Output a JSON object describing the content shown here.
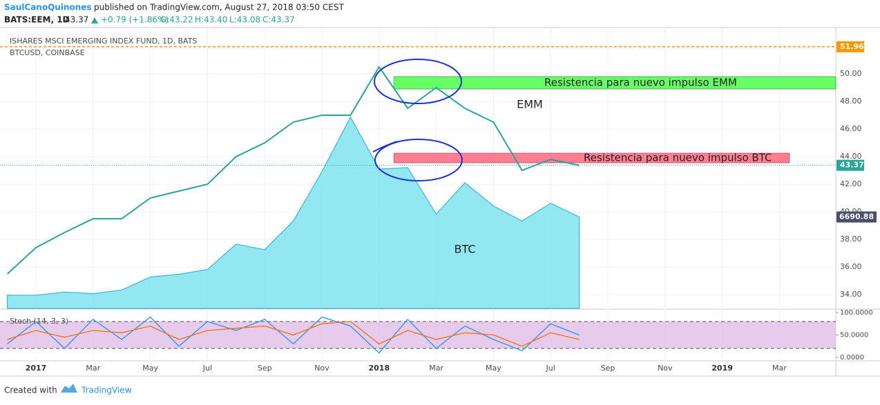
{
  "header": {
    "author": "SaulCanoQuinones",
    "published": "published on TradingView.com, August 27, 2018 03:50 CEST",
    "symbol": "BATS:EEM, 1D",
    "last": "43.37",
    "change": "+0.79 (+1.86%)",
    "open": "O:43.22",
    "high": "H:43.40",
    "low": "L:43.08",
    "close": "C:43.37"
  },
  "footer": {
    "created": "Created with",
    "brand": "TradingView"
  },
  "chart_data": [
    {
      "type": "line",
      "x": [
        "2016-12",
        "2017-01",
        "2017-02",
        "2017-03",
        "2017-04",
        "2017-05",
        "2017-06",
        "2017-07",
        "2017-08",
        "2017-09",
        "2017-10",
        "2017-11",
        "2017-12",
        "2018-01",
        "2018-02",
        "2018-03",
        "2018-04",
        "2018-05",
        "2018-06",
        "2018-07",
        "2018-08"
      ],
      "series": [
        {
          "name": "ISHARES MSCI EMERGING INDEX FUND, 1D, BATS",
          "color": "#26a69a",
          "values": [
            35.5,
            37.4,
            38.5,
            39.5,
            39.5,
            41,
            41.5,
            42,
            44,
            45,
            46.5,
            47,
            47,
            50.5,
            47.5,
            49,
            47.5,
            46.5,
            43,
            43.8,
            43.37
          ]
        },
        {
          "name": "BTCUSD, COINBASE",
          "color": "#3bb3e4",
          "axis": "y2",
          "values": [
            960,
            970,
            1190,
            1080,
            1350,
            2300,
            2500,
            2850,
            4700,
            4300,
            6400,
            10000,
            14000,
            10200,
            10300,
            6900,
            9200,
            7500,
            6400,
            7700,
            6690.88
          ]
        }
      ],
      "high_line": 51.96,
      "ylim": [
        33,
        53.1
      ],
      "yticks": [
        {
          "value": 34,
          "label": "34.00"
        },
        {
          "value": 36,
          "label": "36.00"
        },
        {
          "value": 38,
          "label": "38.00"
        },
        {
          "value": 40,
          "label": "40.00"
        },
        {
          "value": 42,
          "label": "42.00"
        },
        {
          "value": 44,
          "label": "44.00"
        },
        {
          "value": 46,
          "label": "46.00"
        },
        {
          "value": 48,
          "label": "48.00"
        },
        {
          "value": 50,
          "label": "50.00"
        }
      ],
      "y2lim": [
        0,
        20300
      ],
      "xticks": [
        {
          "value": "2017-01",
          "label": "2017"
        },
        {
          "value": "2017-03",
          "label": "Mar"
        },
        {
          "value": "2017-05",
          "label": "May"
        },
        {
          "value": "2017-07",
          "label": "Jul"
        },
        {
          "value": "2017-09",
          "label": "Sep"
        },
        {
          "value": "2017-11",
          "label": "Nov"
        },
        {
          "value": "2018-01",
          "label": "2018"
        },
        {
          "value": "2018-03",
          "label": "Mar"
        },
        {
          "value": "2018-05",
          "label": "May"
        },
        {
          "value": "2018-07",
          "label": "Jul"
        },
        {
          "value": "2018-09",
          "label": "Sep"
        },
        {
          "value": "2018-11",
          "label": "Nov"
        },
        {
          "value": "2019-01",
          "label": "2019"
        },
        {
          "value": "2019-03",
          "label": "Mar"
        }
      ],
      "grid": true,
      "zones": [
        {
          "label": "Resistencia para nuevo impulso EMM",
          "from": 48.9,
          "to": 49.8,
          "start": "2018-02",
          "color": "#66ff66"
        },
        {
          "label": "Resistencia para nuevo impulso BTC",
          "from": 43.55,
          "to": 44.25,
          "start": "2018-02",
          "color": "#ff7f8e"
        }
      ],
      "annotations": [
        "EMM",
        "BTC"
      ]
    },
    {
      "type": "line",
      "title": "Stoch (14, 3, 3)",
      "x": [
        "2016-12",
        "2017-01",
        "2017-02",
        "2017-03",
        "2017-04",
        "2017-05",
        "2017-06",
        "2017-07",
        "2017-08",
        "2017-09",
        "2017-10",
        "2017-11",
        "2017-12",
        "2018-01",
        "2018-02",
        "2018-03",
        "2018-04",
        "2018-05",
        "2018-06",
        "2018-07",
        "2018-08"
      ],
      "series": [
        {
          "color": "#2196f3",
          "values": [
            30,
            80,
            20,
            85,
            40,
            90,
            25,
            80,
            60,
            85,
            30,
            90,
            70,
            10,
            85,
            20,
            70,
            40,
            15,
            75,
            50
          ]
        },
        {
          "color": "#ff6d00",
          "values": [
            40,
            60,
            45,
            60,
            55,
            70,
            40,
            60,
            65,
            70,
            50,
            75,
            80,
            30,
            60,
            40,
            55,
            50,
            25,
            55,
            40
          ]
        }
      ],
      "ylim": [
        0,
        100
      ],
      "yticks": [
        {
          "value": 0,
          "label": "0.0000"
        },
        {
          "value": 50,
          "label": "50.0000"
        },
        {
          "value": 100,
          "label": "100.0000"
        }
      ],
      "levels": [
        20,
        80
      ],
      "band_color": "#e1bee7"
    }
  ]
}
